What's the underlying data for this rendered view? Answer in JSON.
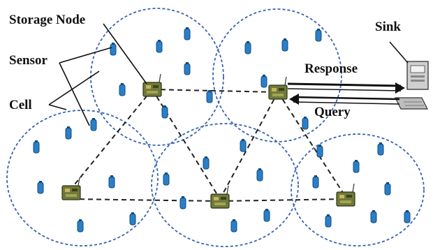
{
  "labels": {
    "storage_node": "Storage Node",
    "sensor": "Sensor",
    "cell": "Cell",
    "sink": "Sink",
    "response": "Response",
    "query": "Query"
  },
  "colors": {
    "cell_border": "#3a63b0",
    "sensor": "#2a7fc8",
    "node_board": "#6f7a3a",
    "link": "#222222"
  },
  "icons": {
    "sensor": "sensor-icon",
    "storage_node": "storage-node-icon",
    "sink": "computer-icon"
  }
}
